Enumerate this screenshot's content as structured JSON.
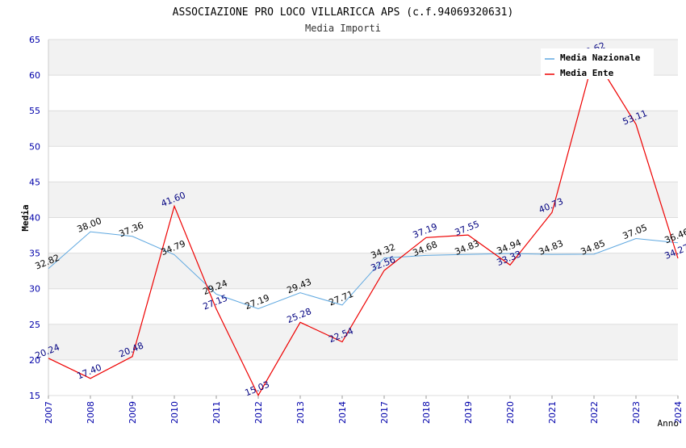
{
  "chart_data": {
    "type": "line",
    "title": "ASSOCIAZIONE PRO LOCO VILLARICCA APS (c.f.94069320631)",
    "subtitle": "Media Importi",
    "xlabel": "Anno",
    "ylabel": "Media",
    "ylim": [
      15,
      65
    ],
    "yticks": [
      15,
      20,
      25,
      30,
      35,
      40,
      45,
      50,
      55,
      60,
      65
    ],
    "grid": true,
    "legend_position": "top-right",
    "categories": [
      "2007",
      "2008",
      "2009",
      "2010",
      "2011",
      "2012",
      "2013",
      "2014",
      "2017",
      "2018",
      "2019",
      "2020",
      "2021",
      "2022",
      "2023",
      "2024"
    ],
    "series": [
      {
        "name": "Media Nazionale",
        "color": "#5fa8e0",
        "values": [
          32.82,
          38.0,
          37.36,
          34.79,
          29.24,
          27.19,
          29.43,
          27.71,
          34.32,
          34.68,
          34.83,
          34.94,
          34.83,
          34.85,
          37.05,
          36.46
        ],
        "labels": [
          "32.82",
          "38.00",
          "37.36",
          "34.79",
          "29.24",
          "27.19",
          "29.43",
          "27.71",
          "34.32",
          "34.68",
          "34.83",
          "34.94",
          "34.83",
          "34.85",
          "37.05",
          "36.46"
        ]
      },
      {
        "name": "Media Ente",
        "color": "#ee0000",
        "values": [
          20.24,
          17.4,
          20.48,
          41.6,
          27.15,
          15.03,
          25.28,
          22.54,
          32.56,
          37.19,
          37.55,
          33.33,
          40.73,
          62.62,
          53.11,
          34.27
        ],
        "labels": [
          "20.24",
          "17.40",
          "20.48",
          "41.60",
          "27.15",
          "15.03",
          "25.28",
          "22.54",
          "32.56",
          "37.19",
          "37.55",
          "33.33",
          "40.73",
          "62.62",
          "53.11",
          "34.27"
        ]
      }
    ]
  }
}
